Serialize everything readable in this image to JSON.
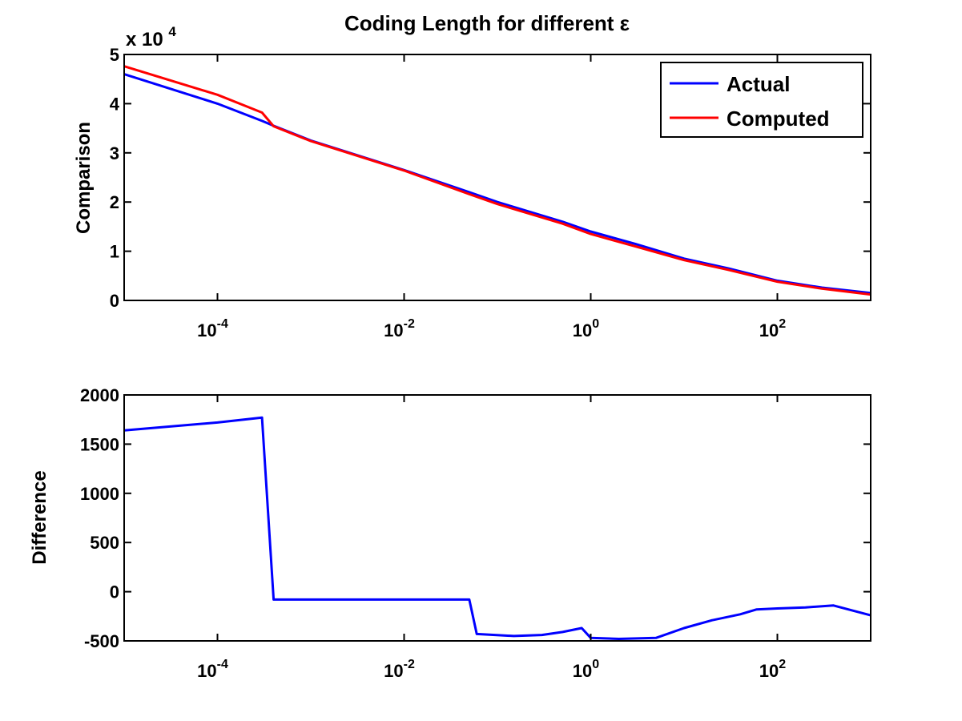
{
  "chart_data": [
    {
      "type": "line",
      "title": "Coding Length for different ε",
      "xlabel": "",
      "ylabel": "Comparison",
      "xscale": "log",
      "xlim": [
        1e-05,
        1000
      ],
      "ylim": [
        0,
        50000
      ],
      "y_multiplier_label": "x 10",
      "y_multiplier_exponent": "4",
      "y_ticks": [
        0,
        1,
        2,
        3,
        4,
        5
      ],
      "y_tick_labels": [
        "0",
        "1",
        "2",
        "3",
        "4",
        "5"
      ],
      "x_ticks": [
        0.0001,
        0.01,
        1,
        100
      ],
      "x_tick_labels": [
        {
          "base": "10",
          "exp": "-4"
        },
        {
          "base": "10",
          "exp": "-2"
        },
        {
          "base": "10",
          "exp": "0"
        },
        {
          "base": "10",
          "exp": "2"
        }
      ],
      "grid": false,
      "legend_position": "top-right",
      "series": [
        {
          "name": "Actual",
          "color": "#0000ff",
          "points": [
            [
              1e-05,
              46000
            ],
            [
              0.0001,
              40000
            ],
            [
              0.0003,
              36500
            ],
            [
              0.0004,
              35500
            ],
            [
              0.001,
              32500
            ],
            [
              0.01,
              26500
            ],
            [
              0.05,
              22000
            ],
            [
              0.1,
              20000
            ],
            [
              0.5,
              16000
            ],
            [
              1,
              14000
            ],
            [
              3,
              11500
            ],
            [
              10,
              8500
            ],
            [
              30,
              6500
            ],
            [
              100,
              4000
            ],
            [
              300,
              2600
            ],
            [
              1000,
              1500
            ]
          ]
        },
        {
          "name": "Computed",
          "color": "#ff0000",
          "points": [
            [
              1e-05,
              47600
            ],
            [
              0.0001,
              41800
            ],
            [
              0.0003,
              38200
            ],
            [
              0.0004,
              35400
            ],
            [
              0.001,
              32400
            ],
            [
              0.01,
              26400
            ],
            [
              0.05,
              21600
            ],
            [
              0.1,
              19600
            ],
            [
              0.5,
              15600
            ],
            [
              1,
              13500
            ],
            [
              3,
              11000
            ],
            [
              10,
              8200
            ],
            [
              30,
              6200
            ],
            [
              100,
              3800
            ],
            [
              300,
              2400
            ],
            [
              1000,
              1200
            ]
          ]
        }
      ]
    },
    {
      "type": "line",
      "title": "",
      "xlabel": "",
      "ylabel": "Difference",
      "xscale": "log",
      "xlim": [
        1e-05,
        1000
      ],
      "ylim": [
        -500,
        2000
      ],
      "y_ticks": [
        -500,
        0,
        500,
        1000,
        1500,
        2000
      ],
      "y_tick_labels": [
        "-500",
        "0",
        "500",
        "1000",
        "1500",
        "2000"
      ],
      "x_ticks": [
        0.0001,
        0.01,
        1,
        100
      ],
      "x_tick_labels": [
        {
          "base": "10",
          "exp": "-4"
        },
        {
          "base": "10",
          "exp": "-2"
        },
        {
          "base": "10",
          "exp": "0"
        },
        {
          "base": "10",
          "exp": "2"
        }
      ],
      "grid": false,
      "series": [
        {
          "color": "#0000ff",
          "points": [
            [
              1e-05,
              1640
            ],
            [
              0.0001,
              1720
            ],
            [
              0.0003,
              1770
            ],
            [
              0.0004,
              -80
            ],
            [
              0.03,
              -80
            ],
            [
              0.05,
              -80
            ],
            [
              0.06,
              -430
            ],
            [
              0.15,
              -450
            ],
            [
              0.3,
              -440
            ],
            [
              0.5,
              -410
            ],
            [
              0.8,
              -370
            ],
            [
              1,
              -470
            ],
            [
              2,
              -480
            ],
            [
              5,
              -470
            ],
            [
              10,
              -370
            ],
            [
              20,
              -290
            ],
            [
              40,
              -230
            ],
            [
              60,
              -180
            ],
            [
              100,
              -170
            ],
            [
              200,
              -160
            ],
            [
              400,
              -140
            ],
            [
              1000,
              -240
            ]
          ]
        }
      ]
    }
  ]
}
